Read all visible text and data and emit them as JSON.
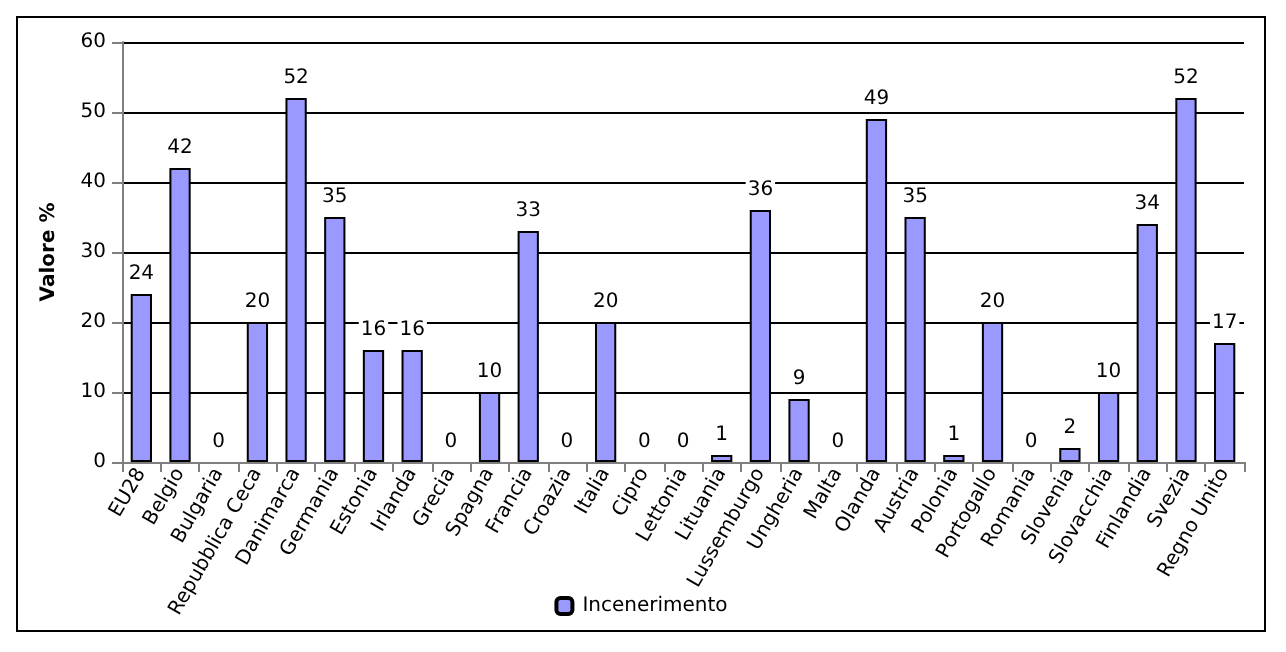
{
  "chart_data": {
    "type": "bar",
    "ylabel": "Valore %",
    "categories": [
      "EU28",
      "Belgio",
      "Bulgaria",
      "Repubblica Ceca",
      "Danimarca",
      "Germania",
      "Estonia",
      "Irlanda",
      "Grecia",
      "Spagna",
      "Francia",
      "Croazia",
      "Italia",
      "Cipro",
      "Lettonia",
      "Lituania",
      "Lussemburgo",
      "Ungheria",
      "Malta",
      "Olanda",
      "Austria",
      "Polonia",
      "Portogallo",
      "Romania",
      "Slovenia",
      "Slovacchia",
      "Finlandia",
      "Svezia",
      "Regno Unito"
    ],
    "series": [
      {
        "name": "Incenerimento",
        "color": "#9999ff",
        "values": [
          24,
          42,
          0,
          20,
          52,
          35,
          16,
          16,
          0,
          10,
          33,
          0,
          20,
          0,
          0,
          1,
          36,
          9,
          0,
          49,
          35,
          1,
          20,
          0,
          2,
          10,
          34,
          52,
          17
        ]
      }
    ],
    "ylim": [
      0,
      60
    ],
    "yticks": [
      0,
      10,
      20,
      30,
      40,
      50,
      60
    ],
    "grid": "y",
    "legend": "bottom",
    "data_labels": true
  }
}
